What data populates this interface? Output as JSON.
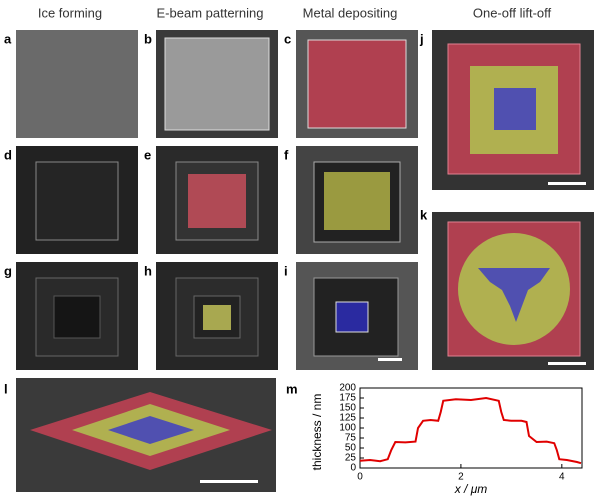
{
  "headers": [
    "Ice forming",
    "E-beam patterning",
    "Metal depositing",
    "One-off lift-off"
  ],
  "panels": [
    {
      "label": "a"
    },
    {
      "label": "b"
    },
    {
      "label": "c"
    },
    {
      "label": "d"
    },
    {
      "label": "e"
    },
    {
      "label": "f"
    },
    {
      "label": "g"
    },
    {
      "label": "h"
    },
    {
      "label": "i"
    },
    {
      "label": "j"
    },
    {
      "label": "k"
    },
    {
      "label": "l"
    },
    {
      "label": "m"
    }
  ],
  "chart_data": {
    "type": "line",
    "xlabel": "x / μm",
    "ylabel": "thickness / nm",
    "color": "#e00000",
    "x": [
      0,
      0.2,
      0.4,
      0.55,
      0.62,
      0.7,
      0.9,
      1.1,
      1.15,
      1.25,
      1.4,
      1.55,
      1.6,
      1.65,
      1.9,
      2.2,
      2.5,
      2.75,
      2.8,
      2.85,
      3.0,
      3.2,
      3.3,
      3.35,
      3.5,
      3.7,
      3.85,
      3.9,
      3.95,
      4.1,
      4.3,
      4.38
    ],
    "values": [
      18,
      20,
      17,
      22,
      45,
      65,
      64,
      66,
      100,
      118,
      120,
      118,
      140,
      168,
      172,
      170,
      175,
      168,
      140,
      120,
      118,
      118,
      115,
      80,
      65,
      66,
      62,
      45,
      22,
      20,
      15,
      12
    ],
    "xlim": [
      0,
      4.4
    ],
    "xticks": [
      0,
      2,
      4
    ],
    "ylim": [
      0,
      200
    ],
    "yticks": [
      0,
      25,
      50,
      75,
      100,
      125,
      150,
      175,
      200
    ]
  }
}
